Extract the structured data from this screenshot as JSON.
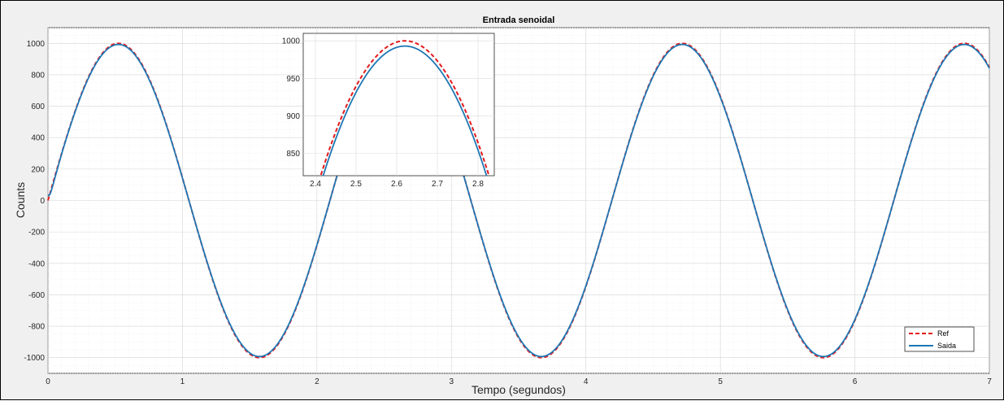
{
  "chart_data": [
    {
      "type": "line",
      "title": "Entrada senoidal",
      "xlabel": "Tempo (segundos)",
      "ylabel": "Counts",
      "xlim": [
        0,
        7
      ],
      "ylim": [
        -1100,
        1100
      ],
      "xticks": [
        0,
        1,
        2,
        3,
        4,
        5,
        6,
        7
      ],
      "yticks": [
        -1000,
        -800,
        -600,
        -400,
        -200,
        0,
        200,
        400,
        600,
        800,
        1000
      ],
      "grid": true,
      "minor_grid": true,
      "legend_position": "bottom-right",
      "signal": {
        "amplitude": 1000,
        "frequency_hz": 0.477,
        "phase_offset_s": 0.0
      },
      "series": [
        {
          "name": "Ref",
          "color": "#e41a1c",
          "style": "dashed",
          "x": [
            0,
            0.25,
            0.5,
            0.52,
            0.75,
            1.0,
            1.25,
            1.5,
            1.57,
            1.75,
            2.0,
            2.25,
            2.5,
            2.62,
            2.75,
            3.0,
            3.25,
            3.5,
            3.67,
            3.75,
            4.0,
            4.25,
            4.5,
            4.72,
            4.75,
            5.0,
            5.25,
            5.5,
            5.77,
            6.0,
            6.25,
            6.5,
            6.82,
            7.0
          ],
          "y": [
            0,
            680,
            998,
            1000,
            863,
            366,
            -254,
            -785,
            -1000,
            -955,
            -544,
            55,
            613,
            1000,
            992,
            685,
            112,
            -462,
            -1000,
            -993,
            -782,
            -265,
            345,
            1000,
            997,
            773,
            243,
            -374,
            -1000,
            -691,
            -150,
            426,
            1000,
            793
          ]
        },
        {
          "name": "Saida",
          "color": "#1f77b4",
          "style": "solid",
          "x": [
            0,
            0.05,
            0.25,
            0.5,
            0.52,
            0.75,
            1.0,
            1.25,
            1.5,
            1.57,
            1.75,
            2.0,
            2.25,
            2.5,
            2.62,
            2.75,
            3.0,
            3.25,
            3.5,
            3.67,
            3.75,
            4.0,
            4.25,
            4.5,
            4.72,
            4.75,
            5.0,
            5.25,
            5.5,
            5.77,
            6.0,
            6.25,
            6.5,
            6.82,
            7.0
          ],
          "y": [
            0,
            40,
            660,
            990,
            993,
            860,
            366,
            -254,
            -785,
            -995,
            -955,
            -544,
            55,
            610,
            993,
            988,
            685,
            112,
            -462,
            -995,
            -990,
            -782,
            -265,
            345,
            995,
            993,
            773,
            243,
            -374,
            -995,
            -691,
            -150,
            426,
            995,
            793
          ]
        }
      ]
    },
    {
      "type": "line",
      "title": "",
      "xlim": [
        2.37,
        2.84
      ],
      "ylim": [
        820,
        1010
      ],
      "xticks": [
        2.4,
        2.5,
        2.6,
        2.7,
        2.8
      ],
      "yticks": [
        850,
        900,
        950,
        1000
      ],
      "grid": true,
      "series": [
        {
          "name": "Ref",
          "color": "#e41a1c",
          "style": "dashed",
          "peak_x": 2.62,
          "peak_y": 1000
        },
        {
          "name": "Saida",
          "color": "#1f77b4",
          "style": "solid",
          "peak_x": 2.62,
          "peak_y": 993
        }
      ]
    }
  ]
}
